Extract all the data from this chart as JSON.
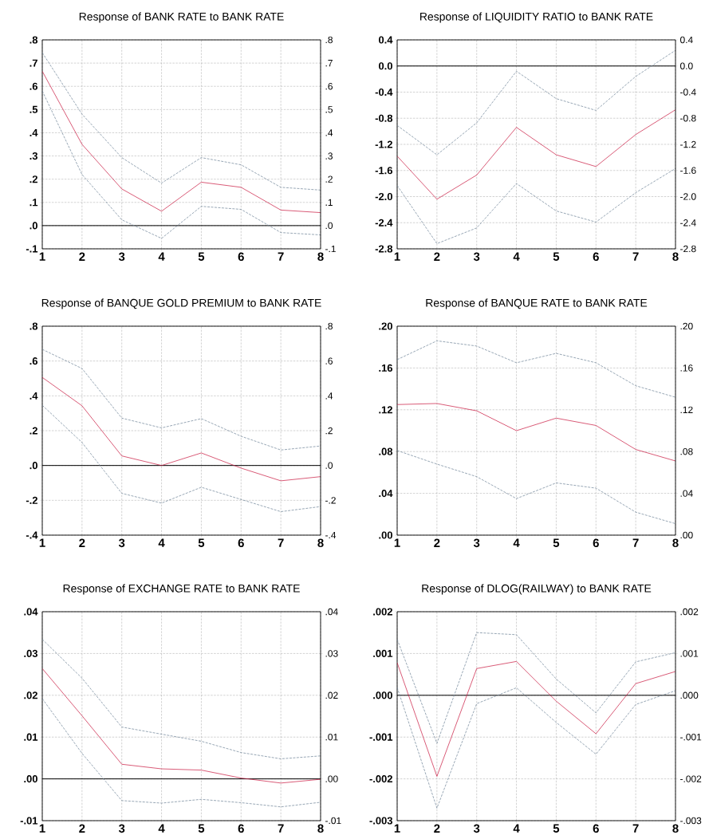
{
  "chart_data": [
    {
      "type": "line",
      "title": "Response of BANK RATE to BANK RATE",
      "x": [
        1,
        2,
        3,
        4,
        5,
        6,
        7,
        8
      ],
      "xlim": [
        1,
        8
      ],
      "xticks": [
        1,
        2,
        3,
        4,
        5,
        6,
        7,
        8
      ],
      "ylim": [
        -0.1,
        0.8
      ],
      "yticks": [
        {
          "value": -0.1,
          "label": "-.1"
        },
        {
          "value": 0,
          "label": ".0"
        },
        {
          "value": 0.1,
          "label": ".1"
        },
        {
          "value": 0.2,
          "label": ".2"
        },
        {
          "value": 0.3,
          "label": ".3"
        },
        {
          "value": 0.4,
          "label": ".4"
        },
        {
          "value": 0.5,
          "label": ".5"
        },
        {
          "value": 0.6,
          "label": ".6"
        },
        {
          "value": 0.7,
          "label": ".7"
        },
        {
          "value": 0.8,
          "label": ".8"
        }
      ],
      "y2lim": [
        -0.1,
        0.8
      ],
      "y2ticks": [
        {
          "value": -0.1,
          "label": "-.1"
        },
        {
          "value": 0,
          "label": ".0"
        },
        {
          "value": 0.1,
          "label": ".1"
        },
        {
          "value": 0.2,
          "label": ".2"
        },
        {
          "value": 0.3,
          "label": ".3"
        },
        {
          "value": 0.4,
          "label": ".4"
        },
        {
          "value": 0.5,
          "label": ".5"
        },
        {
          "value": 0.6,
          "label": ".6"
        },
        {
          "value": 0.7,
          "label": ".7"
        },
        {
          "value": 0.8,
          "label": ".8"
        }
      ],
      "grid": true,
      "ref_lines": [
        {
          "axis": "y",
          "value": 0,
          "color": "#000000"
        }
      ],
      "series": [
        {
          "color": "#6a8094",
          "line_style": "dashed",
          "values": [
            0.745,
            0.48,
            0.293,
            0.183,
            0.293,
            0.262,
            0.165,
            0.153
          ]
        },
        {
          "color": "#c8143c",
          "line_style": "solid",
          "values": [
            0.665,
            0.35,
            0.158,
            0.062,
            0.187,
            0.165,
            0.067,
            0.056
          ]
        },
        {
          "color": "#6a8094",
          "line_style": "dashed",
          "values": [
            0.58,
            0.22,
            0.025,
            -0.055,
            0.083,
            0.07,
            -0.03,
            -0.04
          ]
        }
      ]
    },
    {
      "type": "line",
      "title": "Response of LIQUIDITY RATIO to BANK RATE",
      "x": [
        1,
        2,
        3,
        4,
        5,
        6,
        7,
        8
      ],
      "xlim": [
        1,
        8
      ],
      "xticks": [
        1,
        2,
        3,
        4,
        5,
        6,
        7,
        8
      ],
      "ylim": [
        -2.8,
        0.4
      ],
      "yticks": [
        {
          "value": -2.8,
          "label": "-2.8"
        },
        {
          "value": -2.4,
          "label": "-2.4"
        },
        {
          "value": -2.0,
          "label": "-2.0"
        },
        {
          "value": -1.6,
          "label": "-1.6"
        },
        {
          "value": -1.2,
          "label": "-1.2"
        },
        {
          "value": -0.8,
          "label": "-0.8"
        },
        {
          "value": -0.4,
          "label": "-0.4"
        },
        {
          "value": 0,
          "label": "0.0"
        },
        {
          "value": 0.4,
          "label": "0.4"
        }
      ],
      "y2lim": [
        -2.8,
        0.4
      ],
      "y2ticks": [
        {
          "value": -2.8,
          "label": "-2.8"
        },
        {
          "value": -2.4,
          "label": "-2.4"
        },
        {
          "value": -2.0,
          "label": "-2.0"
        },
        {
          "value": -1.6,
          "label": "-1.6"
        },
        {
          "value": -1.2,
          "label": "-1.2"
        },
        {
          "value": -0.8,
          "label": "-0.8"
        },
        {
          "value": -0.4,
          "label": "-0.4"
        },
        {
          "value": 0,
          "label": "0.0"
        },
        {
          "value": 0.4,
          "label": "0.4"
        }
      ],
      "grid": true,
      "ref_lines": [
        {
          "axis": "y",
          "value": 0,
          "color": "#000000"
        }
      ],
      "series": [
        {
          "color": "#6a8094",
          "line_style": "dashed",
          "values": [
            -0.91,
            -1.36,
            -0.87,
            -0.08,
            -0.5,
            -0.68,
            -0.16,
            0.24
          ]
        },
        {
          "color": "#c8143c",
          "line_style": "solid",
          "values": [
            -1.38,
            -2.04,
            -1.67,
            -0.94,
            -1.36,
            -1.54,
            -1.05,
            -0.67
          ]
        },
        {
          "color": "#6a8094",
          "line_style": "dashed",
          "values": [
            -1.83,
            -2.72,
            -2.48,
            -1.8,
            -2.22,
            -2.39,
            -1.94,
            -1.57
          ]
        }
      ]
    },
    {
      "type": "line",
      "title": "Response of BANQUE GOLD PREMIUM to BANK RATE",
      "x": [
        1,
        2,
        3,
        4,
        5,
        6,
        7,
        8
      ],
      "xlim": [
        1,
        8
      ],
      "xticks": [
        1,
        2,
        3,
        4,
        5,
        6,
        7,
        8
      ],
      "ylim": [
        -0.4,
        0.8
      ],
      "yticks": [
        {
          "value": -0.4,
          "label": "-.4"
        },
        {
          "value": -0.2,
          "label": "-.2"
        },
        {
          "value": 0,
          "label": ".0"
        },
        {
          "value": 0.2,
          "label": ".2"
        },
        {
          "value": 0.4,
          "label": ".4"
        },
        {
          "value": 0.6,
          "label": ".6"
        },
        {
          "value": 0.8,
          "label": ".8"
        }
      ],
      "y2lim": [
        -0.4,
        0.8
      ],
      "y2ticks": [
        {
          "value": -0.4,
          "label": "-.4"
        },
        {
          "value": -0.2,
          "label": "-.2"
        },
        {
          "value": 0,
          "label": ".0"
        },
        {
          "value": 0.2,
          "label": ".2"
        },
        {
          "value": 0.4,
          "label": ".4"
        },
        {
          "value": 0.6,
          "label": ".6"
        },
        {
          "value": 0.8,
          "label": ".8"
        }
      ],
      "grid": true,
      "ref_lines": [
        {
          "axis": "y",
          "value": 0,
          "color": "#000000"
        }
      ],
      "series": [
        {
          "color": "#6a8094",
          "line_style": "dashed",
          "values": [
            0.667,
            0.557,
            0.272,
            0.216,
            0.269,
            0.168,
            0.089,
            0.112
          ]
        },
        {
          "color": "#c8143c",
          "line_style": "solid",
          "values": [
            0.506,
            0.343,
            0.055,
            0.0,
            0.072,
            -0.015,
            -0.088,
            -0.064
          ]
        },
        {
          "color": "#6a8094",
          "line_style": "dashed",
          "values": [
            0.346,
            0.132,
            -0.16,
            -0.216,
            -0.125,
            -0.195,
            -0.265,
            -0.236
          ]
        }
      ]
    },
    {
      "type": "line",
      "title": "Response of BANQUE RATE to BANK RATE",
      "x": [
        1,
        2,
        3,
        4,
        5,
        6,
        7,
        8
      ],
      "xlim": [
        1,
        8
      ],
      "xticks": [
        1,
        2,
        3,
        4,
        5,
        6,
        7,
        8
      ],
      "ylim": [
        0,
        0.2
      ],
      "yticks": [
        {
          "value": 0,
          "label": ".00"
        },
        {
          "value": 0.04,
          "label": ".04"
        },
        {
          "value": 0.08,
          "label": ".08"
        },
        {
          "value": 0.12,
          "label": ".12"
        },
        {
          "value": 0.16,
          "label": ".16"
        },
        {
          "value": 0.2,
          "label": ".20"
        }
      ],
      "y2lim": [
        0,
        0.2
      ],
      "y2ticks": [
        {
          "value": 0,
          "label": ".00"
        },
        {
          "value": 0.04,
          "label": ".04"
        },
        {
          "value": 0.08,
          "label": ".08"
        },
        {
          "value": 0.12,
          "label": ".12"
        },
        {
          "value": 0.16,
          "label": ".16"
        },
        {
          "value": 0.2,
          "label": ".20"
        }
      ],
      "grid": true,
      "series": [
        {
          "color": "#6a8094",
          "line_style": "dashed",
          "values": [
            0.168,
            0.186,
            0.181,
            0.165,
            0.174,
            0.165,
            0.143,
            0.132
          ]
        },
        {
          "color": "#c8143c",
          "line_style": "solid",
          "values": [
            0.125,
            0.126,
            0.119,
            0.1,
            0.112,
            0.105,
            0.082,
            0.071
          ]
        },
        {
          "color": "#6a8094",
          "line_style": "dashed",
          "values": [
            0.081,
            0.068,
            0.056,
            0.035,
            0.05,
            0.045,
            0.022,
            0.011
          ]
        }
      ]
    },
    {
      "type": "line",
      "title": "Response of EXCHANGE RATE to BANK RATE",
      "x": [
        1,
        2,
        3,
        4,
        5,
        6,
        7,
        8
      ],
      "xlim": [
        1,
        8
      ],
      "xticks": [
        1,
        2,
        3,
        4,
        5,
        6,
        7,
        8
      ],
      "ylim": [
        -0.01,
        0.04
      ],
      "yticks": [
        {
          "value": -0.01,
          "label": "-.01"
        },
        {
          "value": 0,
          "label": ".00"
        },
        {
          "value": 0.01,
          "label": ".01"
        },
        {
          "value": 0.02,
          "label": ".02"
        },
        {
          "value": 0.03,
          "label": ".03"
        },
        {
          "value": 0.04,
          "label": ".04"
        }
      ],
      "y2lim": [
        -0.01,
        0.04
      ],
      "y2ticks": [
        {
          "value": -0.01,
          "label": "-.01"
        },
        {
          "value": 0,
          "label": ".00"
        },
        {
          "value": 0.01,
          "label": ".01"
        },
        {
          "value": 0.02,
          "label": ".02"
        },
        {
          "value": 0.03,
          "label": ".03"
        },
        {
          "value": 0.04,
          "label": ".04"
        }
      ],
      "grid": true,
      "ref_lines": [
        {
          "axis": "y",
          "value": 0,
          "color": "#000000"
        }
      ],
      "series": [
        {
          "color": "#6a8094",
          "line_style": "dashed",
          "values": [
            0.0334,
            0.0241,
            0.0124,
            0.0107,
            0.009,
            0.0063,
            0.0048,
            0.0055
          ]
        },
        {
          "color": "#c8143c",
          "line_style": "solid",
          "values": [
            0.0264,
            0.0151,
            0.0035,
            0.0024,
            0.0021,
            0.0002,
            -0.001,
            -0.0001
          ]
        },
        {
          "color": "#6a8094",
          "line_style": "dashed",
          "values": [
            0.0192,
            0.0061,
            -0.0052,
            -0.0058,
            -0.0049,
            -0.0057,
            -0.0067,
            -0.0056
          ]
        }
      ]
    },
    {
      "type": "line",
      "title": "Response of DLOG(RAILWAY) to BANK RATE",
      "x": [
        1,
        2,
        3,
        4,
        5,
        6,
        7,
        8
      ],
      "xlim": [
        1,
        8
      ],
      "xticks": [
        1,
        2,
        3,
        4,
        5,
        6,
        7,
        8
      ],
      "ylim": [
        -0.003,
        0.002
      ],
      "yticks": [
        {
          "value": -0.003,
          "label": "-.003"
        },
        {
          "value": -0.002,
          "label": "-.002"
        },
        {
          "value": -0.001,
          "label": "-.001"
        },
        {
          "value": 0,
          "label": ".000"
        },
        {
          "value": 0.001,
          "label": ".001"
        },
        {
          "value": 0.002,
          "label": ".002"
        }
      ],
      "y2lim": [
        -0.003,
        0.002
      ],
      "y2ticks": [
        {
          "value": -0.003,
          "label": "-.003"
        },
        {
          "value": -0.002,
          "label": "-.002"
        },
        {
          "value": -0.001,
          "label": "-.001"
        },
        {
          "value": 0,
          "label": ".000"
        },
        {
          "value": 0.001,
          "label": ".001"
        },
        {
          "value": 0.002,
          "label": ".002"
        }
      ],
      "grid": true,
      "ref_lines": [
        {
          "axis": "y",
          "value": 0,
          "color": "#000000"
        }
      ],
      "series": [
        {
          "color": "#6a8094",
          "line_style": "dashed",
          "values": [
            0.00134,
            -0.00115,
            0.0015,
            0.00145,
            0.00039,
            -0.00042,
            0.0008,
            0.00102
          ]
        },
        {
          "color": "#c8143c",
          "line_style": "solid",
          "values": [
            0.00078,
            -0.00194,
            0.00064,
            0.00081,
            -0.00014,
            -0.00092,
            0.00028,
            0.00057
          ]
        },
        {
          "color": "#6a8094",
          "line_style": "dashed",
          "values": [
            0.00019,
            -0.0027,
            -0.0002,
            0.00018,
            -0.00065,
            -0.00141,
            -0.00022,
            0.00011
          ]
        }
      ]
    }
  ]
}
